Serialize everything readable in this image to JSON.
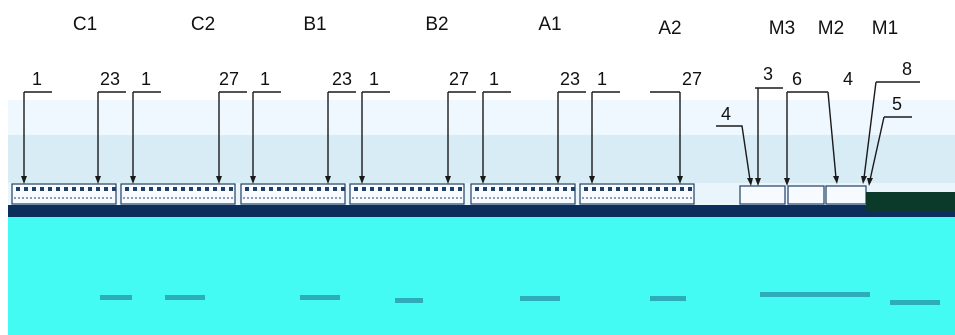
{
  "groups": [
    {
      "name": "C1",
      "left_label": "1",
      "right_label": "23"
    },
    {
      "name": "C2",
      "left_label": "1",
      "right_label": "27"
    },
    {
      "name": "B1",
      "left_label": "1",
      "right_label": "23"
    },
    {
      "name": "B2",
      "left_label": "1",
      "right_label": "27"
    },
    {
      "name": "A1",
      "left_label": "1",
      "right_label": "23"
    },
    {
      "name": "A2",
      "left_label": "1",
      "right_label": "27"
    }
  ],
  "modules": [
    {
      "name": "M3"
    },
    {
      "name": "M2"
    },
    {
      "name": "M1"
    }
  ],
  "module_callouts": [
    "4",
    "3",
    "6",
    "4",
    "8",
    "5"
  ],
  "colors": {
    "sky_top": "#f0f8ff",
    "sky_mid": "#d8ecf6",
    "strip_dark": "#0b2f5a",
    "ground": "#44fbf3",
    "connector": "#1f3f66",
    "leader": "#1a1a1a"
  }
}
